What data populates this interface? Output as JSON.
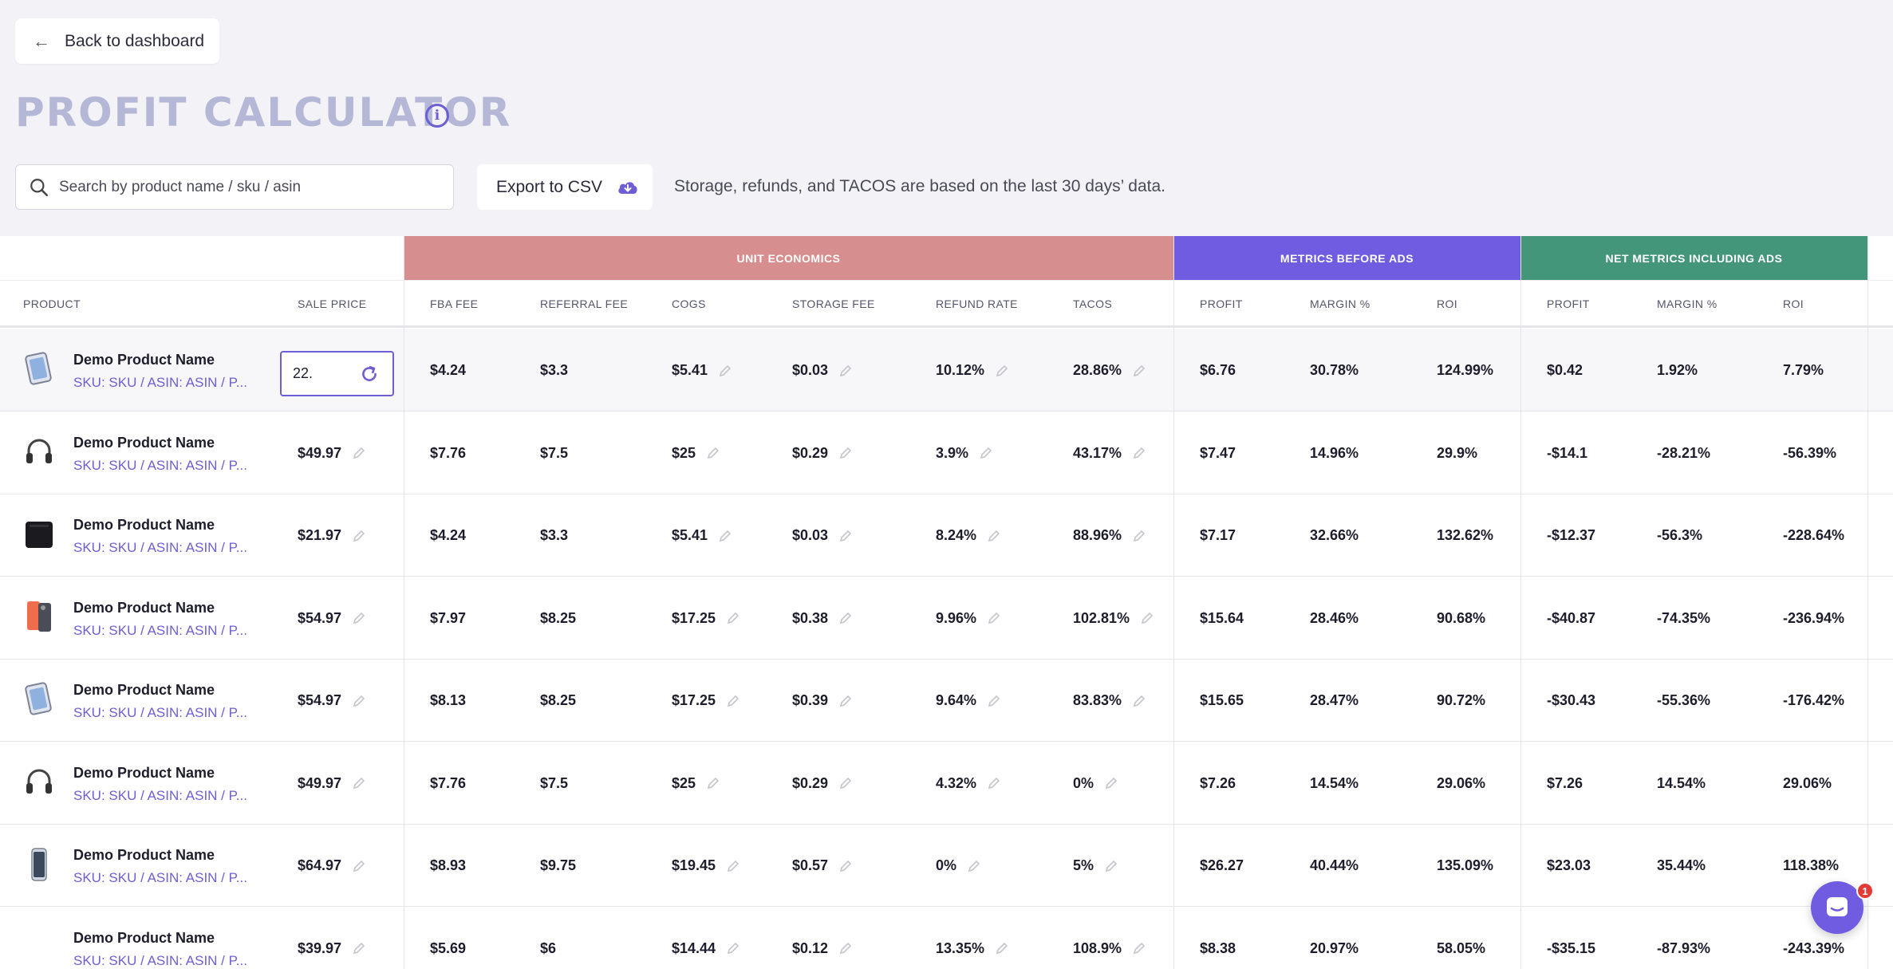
{
  "back": {
    "label": "Back to dashboard"
  },
  "page": {
    "title": "PROFIT CALCULATOR"
  },
  "search": {
    "placeholder": "Search by product name / sku / asin"
  },
  "export": {
    "label": "Export to CSV"
  },
  "note": "Storage, refunds, and TACOS are based on the last 30 days’ data.",
  "groups": {
    "unit": "UNIT ECONOMICS",
    "before": "METRICS BEFORE ADS",
    "net": "NET METRICS INCLUDING ADS"
  },
  "columns": {
    "product": "PRODUCT",
    "sale_price": "SALE PRICE",
    "fba_fee": "FBA FEE",
    "referral_fee": "REFERRAL FEE",
    "cogs": "COGS",
    "storage_fee": "STORAGE FEE",
    "refund_rate": "REFUND RATE",
    "tacos": "TACOS",
    "profit": "PROFIT",
    "margin": "MARGIN %",
    "roi": "ROI",
    "net_profit": "PROFIT",
    "net_margin": "MARGIN %",
    "net_roi": "ROI"
  },
  "rows": [
    {
      "name": "Demo Product Name",
      "sku": "SKU: SKU / ASIN: ASIN / P...",
      "thumb": "tablet-icon",
      "sale_price": "22.",
      "fba": "$4.24",
      "referral": "$3.3",
      "cogs": "$5.41",
      "storage": "$0.03",
      "refund": "10.12%",
      "tacos": "28.86%",
      "profit": "$6.76",
      "margin": "30.78%",
      "roi": "124.99%",
      "net_profit": "$0.42",
      "net_margin": "1.92%",
      "net_roi": "7.79%"
    },
    {
      "name": "Demo Product Name",
      "sku": "SKU: SKU / ASIN: ASIN / P...",
      "thumb": "headphones-icon",
      "sale_price": "$49.97",
      "fba": "$7.76",
      "referral": "$7.5",
      "cogs": "$25",
      "storage": "$0.29",
      "refund": "3.9%",
      "tacos": "43.17%",
      "profit": "$7.47",
      "margin": "14.96%",
      "roi": "29.9%",
      "net_profit": "-$14.1",
      "net_margin": "-28.21%",
      "net_roi": "-56.39%"
    },
    {
      "name": "Demo Product Name",
      "sku": "SKU: SKU / ASIN: ASIN / P...",
      "thumb": "case-icon",
      "sale_price": "$21.97",
      "fba": "$4.24",
      "referral": "$3.3",
      "cogs": "$5.41",
      "storage": "$0.03",
      "refund": "8.24%",
      "tacos": "88.96%",
      "profit": "$7.17",
      "margin": "32.66%",
      "roi": "132.62%",
      "net_profit": "-$12.37",
      "net_margin": "-56.3%",
      "net_roi": "-228.64%"
    },
    {
      "name": "Demo Product Name",
      "sku": "SKU: SKU / ASIN: ASIN / P...",
      "thumb": "phone-orange-icon",
      "sale_price": "$54.97",
      "fba": "$7.97",
      "referral": "$8.25",
      "cogs": "$17.25",
      "storage": "$0.38",
      "refund": "9.96%",
      "tacos": "102.81%",
      "profit": "$15.64",
      "margin": "28.46%",
      "roi": "90.68%",
      "net_profit": "-$40.87",
      "net_margin": "-74.35%",
      "net_roi": "-236.94%"
    },
    {
      "name": "Demo Product Name",
      "sku": "SKU: SKU / ASIN: ASIN / P...",
      "thumb": "tablet-icon",
      "sale_price": "$54.97",
      "fba": "$8.13",
      "referral": "$8.25",
      "cogs": "$17.25",
      "storage": "$0.39",
      "refund": "9.64%",
      "tacos": "83.83%",
      "profit": "$15.65",
      "margin": "28.47%",
      "roi": "90.72%",
      "net_profit": "-$30.43",
      "net_margin": "-55.36%",
      "net_roi": "-176.42%"
    },
    {
      "name": "Demo Product Name",
      "sku": "SKU: SKU / ASIN: ASIN / P...",
      "thumb": "headphones-icon",
      "sale_price": "$49.97",
      "fba": "$7.76",
      "referral": "$7.5",
      "cogs": "$25",
      "storage": "$0.29",
      "refund": "4.32%",
      "tacos": "0%",
      "profit": "$7.26",
      "margin": "14.54%",
      "roi": "29.06%",
      "net_profit": "$7.26",
      "net_margin": "14.54%",
      "net_roi": "29.06%"
    },
    {
      "name": "Demo Product Name",
      "sku": "SKU: SKU / ASIN: ASIN / P...",
      "thumb": "phone-icon",
      "sale_price": "$64.97",
      "fba": "$8.93",
      "referral": "$9.75",
      "cogs": "$19.45",
      "storage": "$0.57",
      "refund": "0%",
      "tacos": "5%",
      "profit": "$26.27",
      "margin": "40.44%",
      "roi": "135.09%",
      "net_profit": "$23.03",
      "net_margin": "35.44%",
      "net_roi": "118.38%"
    },
    {
      "name": "Demo Product Name",
      "sku": "SKU: SKU / ASIN: ASIN / P...",
      "thumb": "blank-icon",
      "sale_price": "$39.97",
      "fba": "$5.69",
      "referral": "$6",
      "cogs": "$14.44",
      "storage": "$0.12",
      "refund": "13.35%",
      "tacos": "108.9%",
      "profit": "$8.38",
      "margin": "20.97%",
      "roi": "58.05%",
      "net_profit": "-$35.15",
      "net_margin": "-87.93%",
      "net_roi": "-243.39%"
    }
  ],
  "chat": {
    "badge": "1"
  },
  "colors": {
    "unit_economics": "#d68e8e",
    "before_ads": "#6f5ce0",
    "net_ads": "#44967a",
    "accent": "#6c5fd4"
  }
}
